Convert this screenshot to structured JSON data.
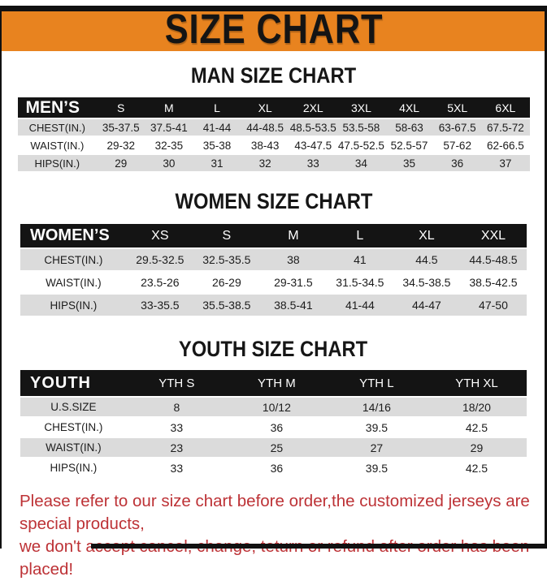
{
  "title": "SIZE CHART",
  "colors": {
    "banner_orange": "#e8831f",
    "table_header_black": "#141414",
    "row_gray": "#dbdbdb",
    "row_white": "#ffffff",
    "note_red": "#bd3236",
    "frame_black": "#111111"
  },
  "sections": [
    {
      "heading": "MAN SIZE CHART",
      "table": {
        "header": [
          "MEN’S",
          "S",
          "M",
          "L",
          "XL",
          "2XL",
          "3XL",
          "4XL",
          "5XL",
          "6XL"
        ],
        "rows": [
          [
            "CHEST(IN.)",
            "35-37.5",
            "37.5-41",
            "41-44",
            "44-48.5",
            "48.5-53.5",
            "53.5-58",
            "58-63",
            "63-67.5",
            "67.5-72"
          ],
          [
            "WAIST(IN.)",
            "29-32",
            "32-35",
            "35-38",
            "38-43",
            "43-47.5",
            "47.5-52.5",
            "52.5-57",
            "57-62",
            "62-66.5"
          ],
          [
            "HIPS(IN.)",
            "29",
            "30",
            "31",
            "32",
            "33",
            "34",
            "35",
            "36",
            "37"
          ]
        ]
      }
    },
    {
      "heading": "WOMEN SIZE CHART",
      "table": {
        "header": [
          "WOMEN’S",
          "XS",
          "S",
          "M",
          "L",
          "XL",
          "XXL"
        ],
        "rows": [
          [
            "CHEST(IN.)",
            "29.5-32.5",
            "32.5-35.5",
            "38",
            "41",
            "44.5",
            "44.5-48.5"
          ],
          [
            "WAIST(IN.)",
            "23.5-26",
            "26-29",
            "29-31.5",
            "31.5-34.5",
            "34.5-38.5",
            "38.5-42.5"
          ],
          [
            "HIPS(IN.)",
            "33-35.5",
            "35.5-38.5",
            "38.5-41",
            "41-44",
            "44-47",
            "47-50"
          ]
        ]
      }
    },
    {
      "heading": "YOUTH SIZE CHART",
      "table": {
        "header": [
          "YOUTH",
          "YTH S",
          "YTH M",
          "YTH L",
          "YTH XL"
        ],
        "rows": [
          [
            "U.S.SIZE",
            "8",
            "10/12",
            "14/16",
            "18/20"
          ],
          [
            "CHEST(IN.)",
            "33",
            "36",
            "39.5",
            "42.5"
          ],
          [
            "WAIST(IN.)",
            "23",
            "25",
            "27",
            "29"
          ],
          [
            "HIPS(IN.)",
            "33",
            "36",
            "39.5",
            "42.5"
          ]
        ]
      }
    }
  ],
  "footer": {
    "line1": "Please refer to our size chart before order,the customized jerseys are special products,",
    "line2": "we don't accept cancel, change, teturn or refund after order has been placed!"
  }
}
